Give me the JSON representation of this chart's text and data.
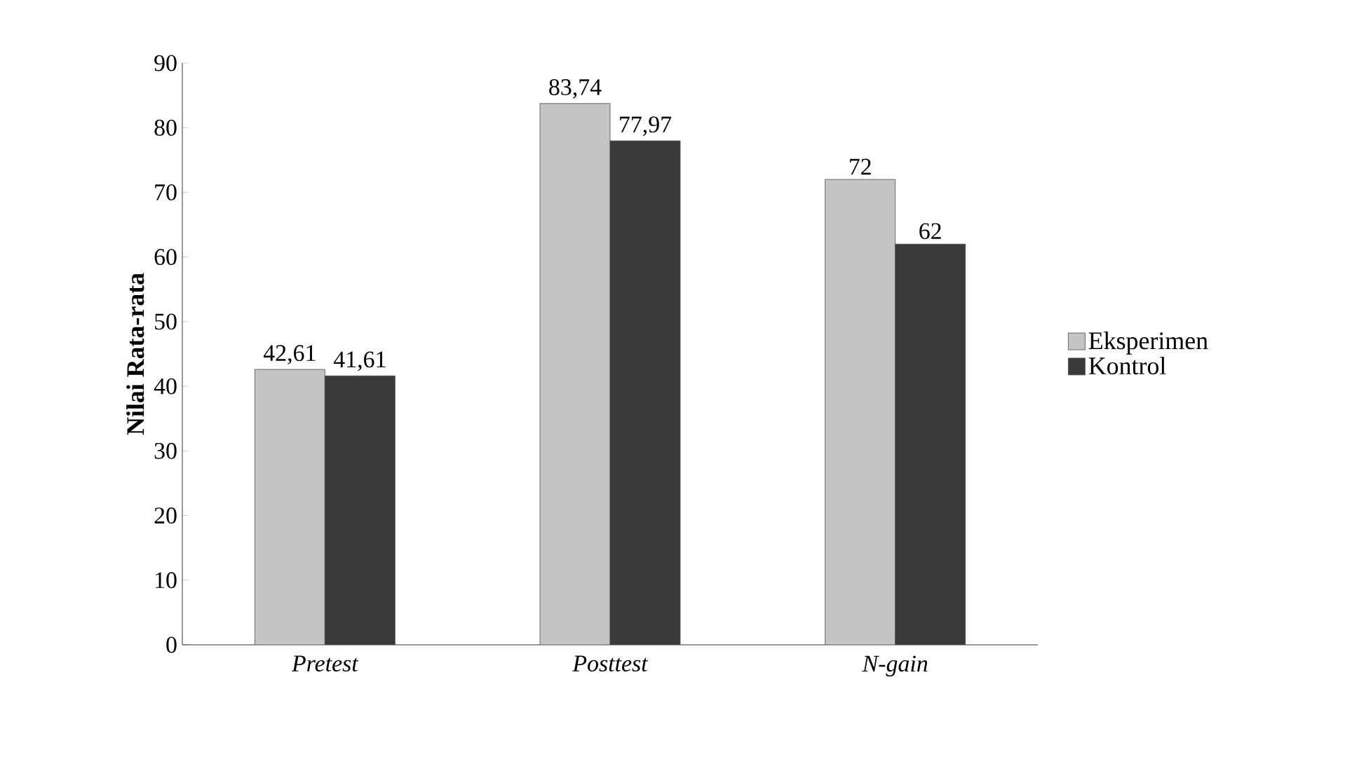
{
  "chart_data": {
    "type": "bar",
    "ylabel": "Nilai Rata-rata",
    "categories": [
      "Pretest",
      "Posttest",
      "N-gain"
    ],
    "series": [
      {
        "name": "Eksperimen",
        "color": "#c4c4c4",
        "values": [
          42.61,
          83.74,
          72
        ],
        "value_labels": [
          "42,61",
          "83,74",
          "72"
        ]
      },
      {
        "name": "Kontrol",
        "color": "#3a3a3a",
        "values": [
          41.61,
          77.97,
          62
        ],
        "value_labels": [
          "41,61",
          "77,97",
          "62"
        ]
      }
    ],
    "ylim": [
      0,
      90
    ],
    "yticks": [
      0,
      10,
      20,
      30,
      40,
      50,
      60,
      70,
      80,
      90
    ],
    "grid": false,
    "legend": "right"
  }
}
